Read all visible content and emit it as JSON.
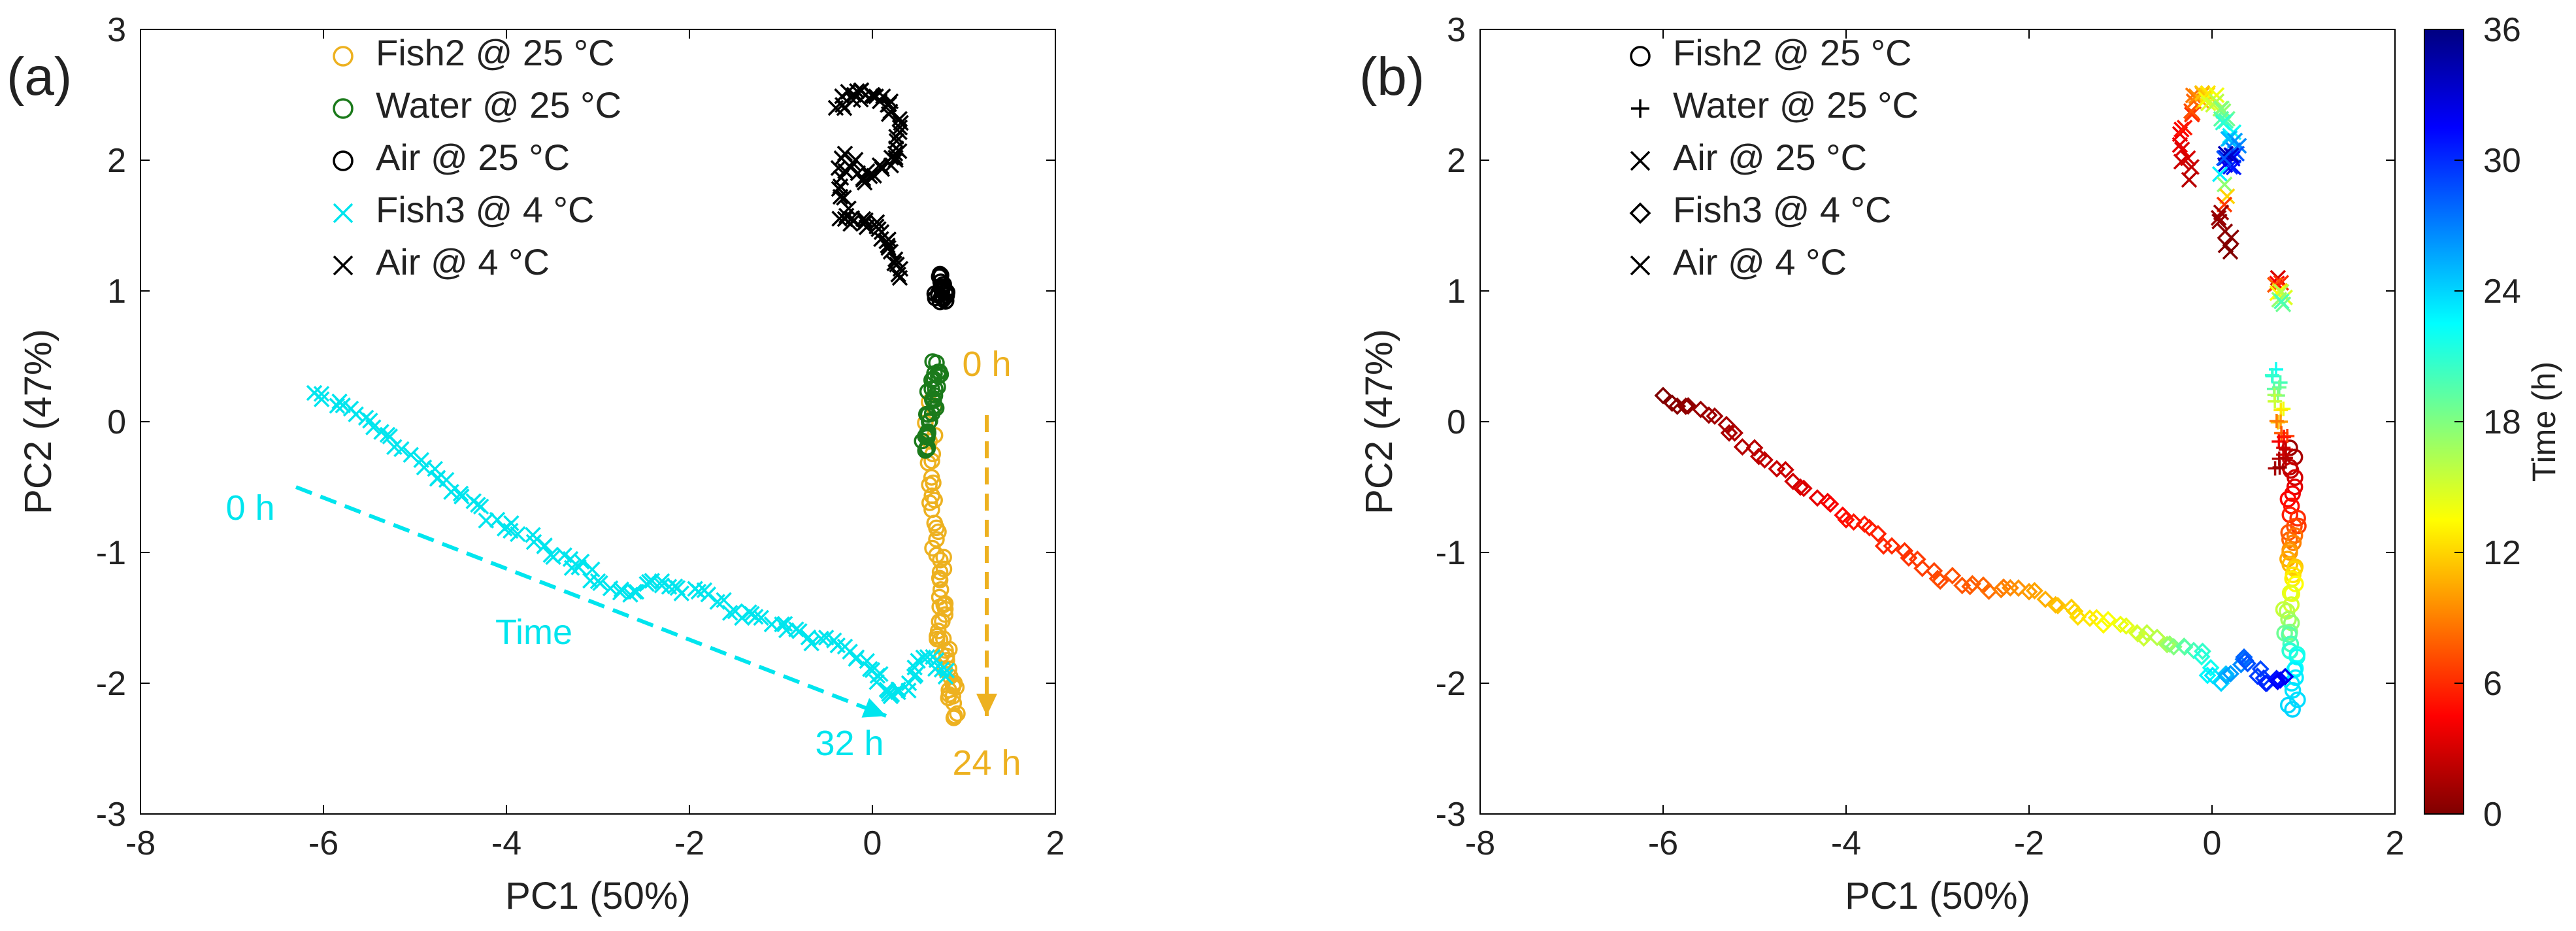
{
  "chart_data": [
    {
      "panel": "(a)",
      "type": "scatter",
      "xlabel": "PC1 (50%)",
      "ylabel": "PC2 (47%)",
      "xlim": [
        -8,
        2
      ],
      "ylim": [
        -3,
        3
      ],
      "xticks": [
        "-8",
        "-6",
        "-4",
        "-2",
        "0",
        "2"
      ],
      "yticks": [
        "-3",
        "-2",
        "-1",
        "0",
        "1",
        "2",
        "3"
      ],
      "legend": [
        "Fish2 @ 25 °C",
        "Water @ 25 °C",
        "Air @ 25 °C",
        "Fish3 @ 4 °C",
        "Air @ 4 °C"
      ],
      "series": [
        {
          "name": "Fish2 @ 25 °C",
          "marker": "o",
          "color": "#EDB120",
          "points": [
            [
              0.62,
              0.15
            ],
            [
              0.65,
              -0.3
            ],
            [
              0.68,
              -0.6
            ],
            [
              0.7,
              -0.9
            ],
            [
              0.74,
              -1.15
            ],
            [
              0.78,
              -1.4
            ],
            [
              0.72,
              -1.6
            ],
            [
              0.8,
              -1.75
            ],
            [
              0.85,
              -1.95
            ],
            [
              0.88,
              -2.1
            ],
            [
              0.9,
              -2.25
            ]
          ]
        },
        {
          "name": "Water @ 25 °C",
          "marker": "o",
          "color": "#1B7A1B",
          "points": [
            [
              0.7,
              0.45
            ],
            [
              0.72,
              0.35
            ],
            [
              0.65,
              0.25
            ],
            [
              0.68,
              0.12
            ],
            [
              0.62,
              0.0
            ],
            [
              0.6,
              -0.12
            ],
            [
              0.58,
              -0.22
            ]
          ]
        },
        {
          "name": "Air @ 25 °C",
          "marker": "o",
          "color": "#000000",
          "points": [
            [
              0.75,
              1.12
            ],
            [
              0.78,
              1.05
            ],
            [
              0.72,
              0.98
            ],
            [
              0.8,
              0.92
            ],
            [
              0.76,
              1.0
            ]
          ]
        },
        {
          "name": "Fish3 @ 4 °C",
          "marker": "x",
          "color": "#00E5EE",
          "points": [
            [
              -6.1,
              0.22
            ],
            [
              -5.7,
              0.1
            ],
            [
              -5.3,
              -0.1
            ],
            [
              -4.9,
              -0.35
            ],
            [
              -4.5,
              -0.55
            ],
            [
              -4.1,
              -0.75
            ],
            [
              -3.7,
              -0.92
            ],
            [
              -3.3,
              -1.05
            ],
            [
              -3.0,
              -1.22
            ],
            [
              -2.6,
              -1.3
            ],
            [
              -2.3,
              -1.22
            ],
            [
              -1.9,
              -1.3
            ],
            [
              -1.5,
              -1.45
            ],
            [
              -1.1,
              -1.55
            ],
            [
              -0.7,
              -1.65
            ],
            [
              -0.3,
              -1.72
            ],
            [
              0.0,
              -1.9
            ],
            [
              0.2,
              -2.1
            ],
            [
              0.4,
              -2.0
            ],
            [
              0.6,
              -1.8
            ],
            [
              0.8,
              -1.95
            ]
          ]
        },
        {
          "name": "Air @ 4 °C",
          "marker": "x",
          "color": "#000000",
          "points": [
            [
              -0.4,
              2.4
            ],
            [
              -0.2,
              2.5
            ],
            [
              0.0,
              2.5
            ],
            [
              0.2,
              2.45
            ],
            [
              0.3,
              2.25
            ],
            [
              0.25,
              2.05
            ],
            [
              0.1,
              1.95
            ],
            [
              -0.1,
              1.85
            ],
            [
              -0.3,
              2.05
            ],
            [
              -0.35,
              1.8
            ],
            [
              -0.3,
              1.55
            ],
            [
              -0.1,
              1.55
            ],
            [
              0.1,
              1.45
            ],
            [
              0.2,
              1.3
            ],
            [
              0.3,
              1.1
            ]
          ]
        }
      ],
      "annotations": [
        {
          "text": "0 h",
          "color": "#00E5EE",
          "x": -6.8,
          "y": -0.75
        },
        {
          "text": "Time",
          "color": "#00E5EE",
          "x": -3.7,
          "y": -1.7
        },
        {
          "text": "32 h",
          "color": "#00E5EE",
          "x": -0.25,
          "y": -2.55
        },
        {
          "text": "0 h",
          "color": "#EDB120",
          "x": 1.25,
          "y": 0.35
        },
        {
          "text": "24 h",
          "color": "#EDB120",
          "x": 1.25,
          "y": -2.7
        }
      ],
      "arrows": [
        {
          "color": "#00E5EE",
          "from": [
            -6.3,
            -0.5
          ],
          "to": [
            0.15,
            -2.25
          ]
        },
        {
          "color": "#EDB120",
          "from": [
            1.25,
            0.05
          ],
          "to": [
            1.25,
            -2.25
          ]
        }
      ]
    },
    {
      "panel": "(b)",
      "type": "scatter",
      "xlabel": "PC1 (50%)",
      "ylabel": "PC2 (47%)",
      "xlim": [
        -8,
        2
      ],
      "ylim": [
        -3,
        3
      ],
      "xticks": [
        "-8",
        "-6",
        "-4",
        "-2",
        "0",
        "2"
      ],
      "yticks": [
        "-3",
        "-2",
        "-1",
        "0",
        "1",
        "2",
        "3"
      ],
      "legend": [
        "Fish2 @ 25 °C",
        "Water @ 25 °C",
        "Air @ 25 °C",
        "Fish3 @ 4 °C",
        "Air @ 4 °C"
      ],
      "colorbar": {
        "label": "Time (h)",
        "min": 0,
        "max": 36,
        "ticks": [
          "0",
          "6",
          "12",
          "18",
          "24",
          "30",
          "36"
        ]
      },
      "series": [
        {
          "name": "Fish2 @ 25 °C",
          "marker": "o",
          "points": [
            [
              0.85,
              -0.2,
              1
            ],
            [
              0.88,
              -0.55,
              4
            ],
            [
              0.9,
              -0.8,
              7
            ],
            [
              0.85,
              -1.0,
              10
            ],
            [
              0.88,
              -1.2,
              13
            ],
            [
              0.82,
              -1.45,
              16
            ],
            [
              0.86,
              -1.7,
              20
            ],
            [
              0.9,
              -1.9,
              23
            ],
            [
              0.88,
              -2.2,
              24
            ]
          ]
        },
        {
          "name": "Water @ 25 °C",
          "marker": "+",
          "points": [
            [
              0.7,
              0.4,
              22
            ],
            [
              0.72,
              0.2,
              18
            ],
            [
              0.75,
              0.0,
              10
            ],
            [
              0.78,
              -0.2,
              3
            ],
            [
              0.74,
              -0.35,
              1
            ]
          ]
        },
        {
          "name": "Air @ 25 °C",
          "marker": "x",
          "points": [
            [
              0.72,
              1.1,
              3
            ],
            [
              0.74,
              1.0,
              12
            ],
            [
              0.76,
              0.92,
              20
            ]
          ]
        },
        {
          "name": "Fish3 @ 4 °C",
          "marker": "diamond",
          "points": [
            [
              -6.0,
              0.2,
              0
            ],
            [
              -5.5,
              0.05,
              1
            ],
            [
              -5.0,
              -0.2,
              2
            ],
            [
              -4.5,
              -0.5,
              3
            ],
            [
              -4.0,
              -0.75,
              5
            ],
            [
              -3.5,
              -0.95,
              6
            ],
            [
              -3.0,
              -1.2,
              7
            ],
            [
              -2.5,
              -1.25,
              8
            ],
            [
              -2.0,
              -1.3,
              10
            ],
            [
              -1.5,
              -1.45,
              12
            ],
            [
              -1.0,
              -1.55,
              14
            ],
            [
              -0.6,
              -1.65,
              16
            ],
            [
              -0.2,
              -1.75,
              20
            ],
            [
              0.1,
              -2.0,
              24
            ],
            [
              0.35,
              -1.8,
              28
            ],
            [
              0.6,
              -2.0,
              30
            ],
            [
              0.8,
              -1.95,
              32
            ]
          ]
        },
        {
          "name": "Air @ 4 °C",
          "marker": "x",
          "points": [
            [
              -0.25,
              1.85,
              2
            ],
            [
              -0.35,
              2.2,
              4
            ],
            [
              -0.2,
              2.45,
              8
            ],
            [
              -0.05,
              2.5,
              12
            ],
            [
              0.05,
              2.45,
              16
            ],
            [
              0.15,
              2.3,
              20
            ],
            [
              0.25,
              2.15,
              26
            ],
            [
              0.2,
              1.95,
              30
            ],
            [
              0.15,
              2.05,
              34
            ],
            [
              0.1,
              1.6,
              1
            ],
            [
              0.2,
              1.3,
              0
            ]
          ]
        }
      ]
    }
  ]
}
